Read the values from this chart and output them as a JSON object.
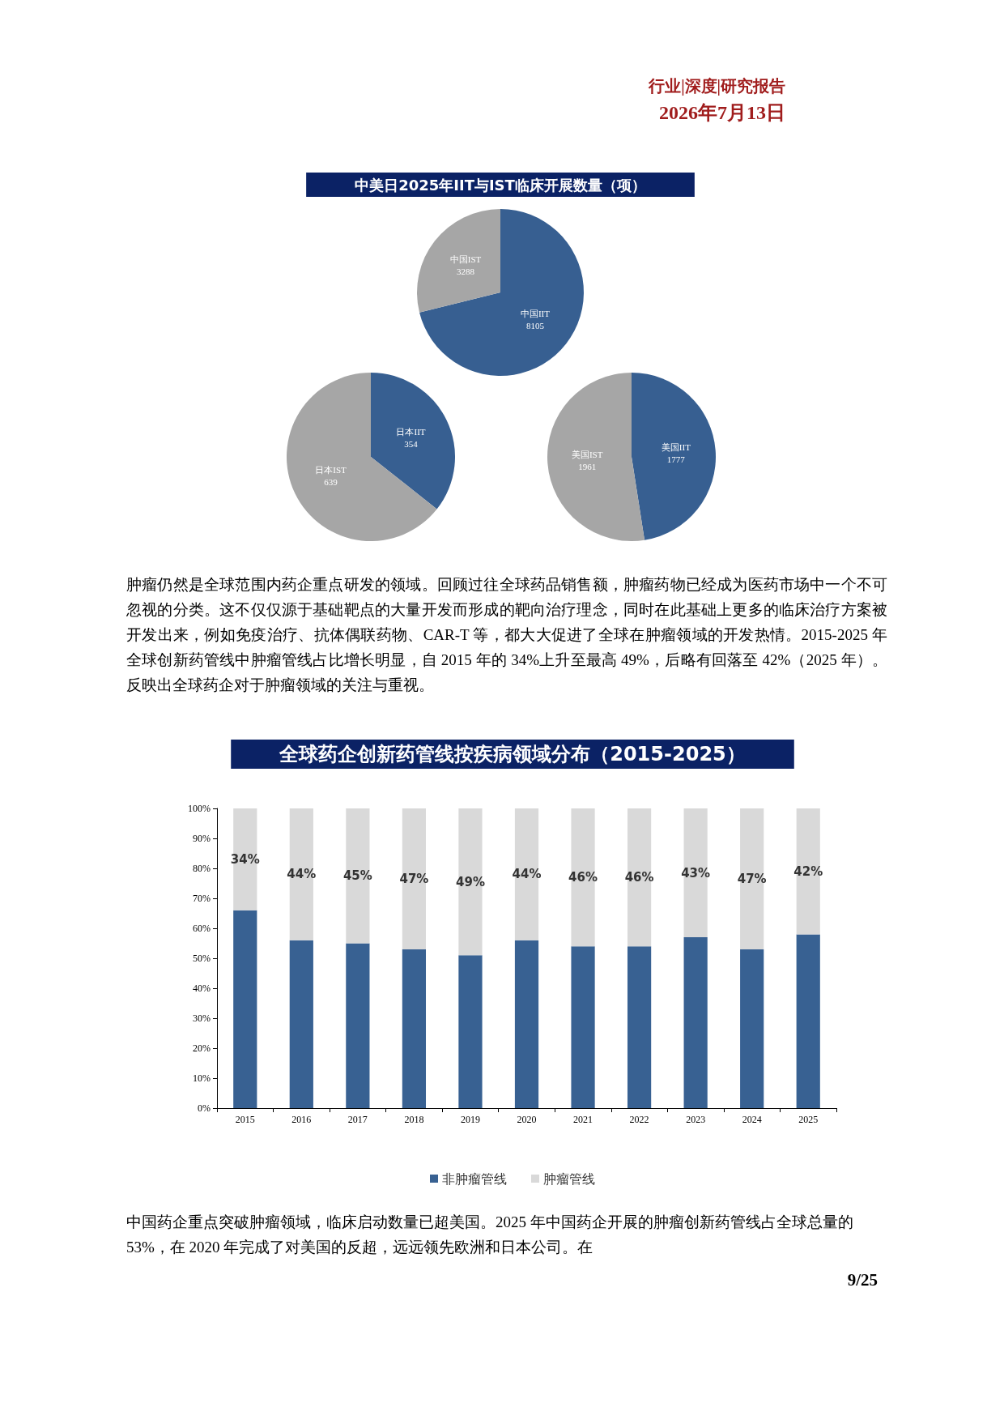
{
  "chart_data": [
    {
      "type": "pie",
      "title": "中美日2025年IIT与IST临床开展数量（项）",
      "categories": [
        "中国IIT",
        "中国IST"
      ],
      "values": [
        8105,
        3288
      ],
      "colors": [
        "#375f91",
        "#a6a6a6"
      ],
      "data_labels": true,
      "annotations": [
        "行业|深度|研究报告",
        "2026年7月13日"
      ]
    },
    {
      "type": "pie",
      "categories": [
        "日本IIT",
        "日本IST"
      ],
      "values": [
        354,
        639
      ],
      "colors": [
        "#375f91",
        "#a6a6a6"
      ],
      "data_labels": true
    },
    {
      "type": "pie",
      "categories": [
        "美国IIT",
        "美国IST"
      ],
      "values": [
        1777,
        1961
      ],
      "colors": [
        "#375f91",
        "#a6a6a6"
      ],
      "data_labels": true,
      "annotations": [
        "肿瘤仍然是全球范围内药企重点研发的领域。回顾过往全球药品销售额，肿瘤药物已经成为医药市场中一个不可忽视的分类。这不仅仅源于基础靶点的大量开发而形成的靶向治疗理念，同时在此基础上更多的临床治疗方案被开发出来，例如免疫治疗、抗体偶联药物、CAR-T 等，都大大促进了全球在肿瘤领域的开发热情。2015-2025 年全球创新药管线中肿瘤管线占比增长明显，自 2015 年的 34%上升至最高 49%，后略有回落至 42%（2025 年）。反映出全球药企对于肿瘤领域的关注与重视。"
      ]
    },
    {
      "type": "bar",
      "title": "全球药企创新药管线按疾病领域分布（2015-2025）",
      "stacked": true,
      "categories": [
        "2015",
        "2016",
        "2017",
        "2018",
        "2019",
        "2020",
        "2021",
        "2022",
        "2023",
        "2024",
        "2025"
      ],
      "series": [
        {
          "name": "非肿瘤管线",
          "color": "#386192",
          "values": [
            66,
            56,
            55,
            53,
            51,
            56,
            54,
            54,
            57,
            53,
            58
          ]
        },
        {
          "name": "肿瘤管线",
          "color": "#d9d9d9",
          "values": [
            34,
            44,
            45,
            47,
            49,
            44,
            46,
            46,
            43,
            47,
            42
          ],
          "value_labels": [
            "34%",
            "44%",
            "45%",
            "47%",
            "49%",
            "44%",
            "46%",
            "46%",
            "43%",
            "47%",
            "42%"
          ]
        }
      ],
      "ylim": [
        0,
        100
      ],
      "yticks": [
        {
          "value": 0,
          "label": "0%"
        },
        {
          "value": 10,
          "label": "10%"
        },
        {
          "value": 20,
          "label": "20%"
        },
        {
          "value": 30,
          "label": "30%"
        },
        {
          "value": 40,
          "label": "40%"
        },
        {
          "value": 50,
          "label": "50%"
        },
        {
          "value": 60,
          "label": "60%"
        },
        {
          "value": 70,
          "label": "70%"
        },
        {
          "value": 80,
          "label": "80%"
        },
        {
          "value": 90,
          "label": "90%"
        },
        {
          "value": 100,
          "label": "100%"
        }
      ],
      "grid": false,
      "legend": "bottom",
      "annotations": [
        "中国药企重点突破肿瘤领域，临床启动数量已超美国。2025 年中国药企开展的肿瘤创新药管线占全球总量的 53%，在 2020 年完成了对美国的反超，远远领先欧洲和日本公司。在",
        "9/25"
      ]
    }
  ]
}
